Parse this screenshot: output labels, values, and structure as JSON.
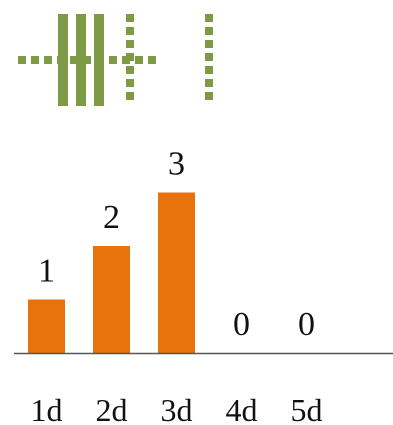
{
  "colors": {
    "bar": "#e8720c",
    "glyph": "#7f9a45",
    "baseline": "#555555",
    "text": "#111111"
  },
  "legend": {
    "icon": "bar-code-tally-icon"
  },
  "chart_data": {
    "type": "bar",
    "categories": [
      "1d",
      "2d",
      "3d",
      "4d",
      "5d"
    ],
    "values": [
      1,
      2,
      3,
      0,
      0
    ],
    "data_labels": [
      "1",
      "2",
      "3",
      "0",
      "0"
    ],
    "ylim": [
      0,
      3
    ],
    "grid": false,
    "title": "",
    "xlabel": "",
    "ylabel": ""
  }
}
